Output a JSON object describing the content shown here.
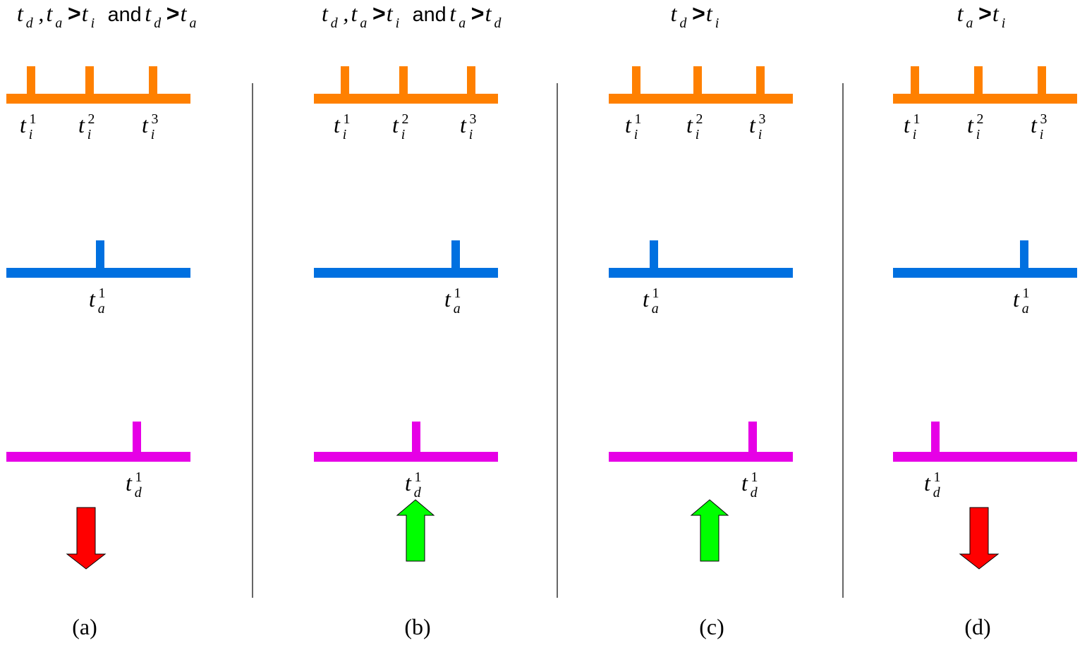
{
  "colors": {
    "input_spikes": "#ff8000",
    "axon_spikes": "#0070e0",
    "dendrite_spikes": "#e600e6",
    "depress_arrow": "#ff0000",
    "potentiate_arrow": "#00ff00",
    "divider": "#000000"
  },
  "panels": [
    {
      "id": "a",
      "caption": "(a)",
      "condition": [
        {
          "base": "t",
          "sub": "d"
        },
        {
          "op": ","
        },
        {
          "base": "t",
          "sub": "a"
        },
        {
          "op": ">"
        },
        {
          "base": "t",
          "sub": "i"
        },
        {
          "word": "and"
        },
        {
          "base": "t",
          "sub": "d"
        },
        {
          "op": ">"
        },
        {
          "base": "t",
          "sub": "a"
        }
      ],
      "rows": [
        {
          "name": "input-row",
          "spikes": [
            {
              "base": "t",
              "sub": "i",
              "sup": "1"
            },
            {
              "base": "t",
              "sub": "i",
              "sup": "2"
            },
            {
              "base": "t",
              "sub": "i",
              "sup": "3"
            }
          ]
        },
        {
          "name": "axon-row",
          "spikes": [
            {
              "base": "t",
              "sub": "a",
              "sup": "1"
            }
          ]
        },
        {
          "name": "dendrite-row",
          "spikes": [
            {
              "base": "t",
              "sub": "d",
              "sup": "1"
            }
          ]
        }
      ],
      "arrow": "down",
      "arrow_icon": "down-arrow-icon"
    },
    {
      "id": "b",
      "caption": "(b)",
      "condition": [
        {
          "base": "t",
          "sub": "d"
        },
        {
          "op": ","
        },
        {
          "base": "t",
          "sub": "a"
        },
        {
          "op": ">"
        },
        {
          "base": "t",
          "sub": "i"
        },
        {
          "word": "and"
        },
        {
          "base": "t",
          "sub": "a"
        },
        {
          "op": ">"
        },
        {
          "base": "t",
          "sub": "d"
        }
      ],
      "rows": [
        {
          "name": "input-row",
          "spikes": [
            {
              "base": "t",
              "sub": "i",
              "sup": "1"
            },
            {
              "base": "t",
              "sub": "i",
              "sup": "2"
            },
            {
              "base": "t",
              "sub": "i",
              "sup": "3"
            }
          ]
        },
        {
          "name": "axon-row",
          "spikes": [
            {
              "base": "t",
              "sub": "a",
              "sup": "1"
            }
          ]
        },
        {
          "name": "dendrite-row",
          "spikes": [
            {
              "base": "t",
              "sub": "d",
              "sup": "1"
            }
          ]
        }
      ],
      "arrow": "up",
      "arrow_icon": "up-arrow-icon"
    },
    {
      "id": "c",
      "caption": "(c)",
      "condition": [
        {
          "base": "t",
          "sub": "d"
        },
        {
          "op": ">"
        },
        {
          "base": "t",
          "sub": "i"
        }
      ],
      "rows": [
        {
          "name": "input-row",
          "spikes": [
            {
              "base": "t",
              "sub": "i",
              "sup": "1"
            },
            {
              "base": "t",
              "sub": "i",
              "sup": "2"
            },
            {
              "base": "t",
              "sub": "i",
              "sup": "3"
            }
          ]
        },
        {
          "name": "axon-row",
          "spikes": [
            {
              "base": "t",
              "sub": "a",
              "sup": "1"
            }
          ]
        },
        {
          "name": "dendrite-row",
          "spikes": [
            {
              "base": "t",
              "sub": "d",
              "sup": "1"
            }
          ]
        }
      ],
      "arrow": "up",
      "arrow_icon": "up-arrow-icon"
    },
    {
      "id": "d",
      "caption": "(d)",
      "condition": [
        {
          "base": "t",
          "sub": "a"
        },
        {
          "op": ">"
        },
        {
          "base": "t",
          "sub": "i"
        }
      ],
      "rows": [
        {
          "name": "input-row",
          "spikes": [
            {
              "base": "t",
              "sub": "i",
              "sup": "1"
            },
            {
              "base": "t",
              "sub": "i",
              "sup": "2"
            },
            {
              "base": "t",
              "sub": "i",
              "sup": "3"
            }
          ]
        },
        {
          "name": "axon-row",
          "spikes": [
            {
              "base": "t",
              "sub": "a",
              "sup": "1"
            }
          ]
        },
        {
          "name": "dendrite-row",
          "spikes": [
            {
              "base": "t",
              "sub": "d",
              "sup": "1"
            }
          ]
        }
      ],
      "arrow": "down",
      "arrow_icon": "down-arrow-icon"
    }
  ]
}
